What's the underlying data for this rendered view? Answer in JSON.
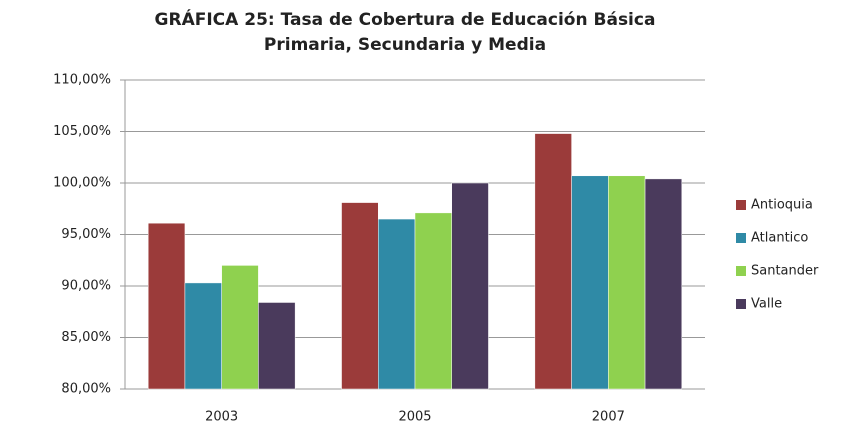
{
  "chart_data": {
    "type": "bar",
    "title": [
      "GRÁFICA 25: Tasa de Cobertura de Educación Básica",
      "Primaria, Secundaria y Media"
    ],
    "categories": [
      "2003",
      "2005",
      "2007"
    ],
    "series": [
      {
        "name": "Antioquia",
        "color": "#9b3b3a",
        "values": [
          96.1,
          98.1,
          104.8
        ]
      },
      {
        "name": "Atlantico",
        "color": "#2f8aa6",
        "values": [
          90.3,
          96.5,
          100.7
        ]
      },
      {
        "name": "Santander",
        "color": "#8fd14f",
        "values": [
          92.0,
          97.1,
          100.7
        ]
      },
      {
        "name": "Valle",
        "color": "#4a3a5c",
        "values": [
          88.4,
          100.0,
          100.4
        ]
      }
    ],
    "ylim": [
      80,
      110
    ],
    "yticks": [
      {
        "value": 80,
        "label": "80,00%"
      },
      {
        "value": 85,
        "label": "85,00%"
      },
      {
        "value": 90,
        "label": "90,00%"
      },
      {
        "value": 95,
        "label": "95,00%"
      },
      {
        "value": 100,
        "label": "100,00%"
      },
      {
        "value": 105,
        "label": "105,00%"
      },
      {
        "value": 110,
        "label": "110,00%"
      }
    ],
    "grid": true,
    "legend": "right"
  }
}
